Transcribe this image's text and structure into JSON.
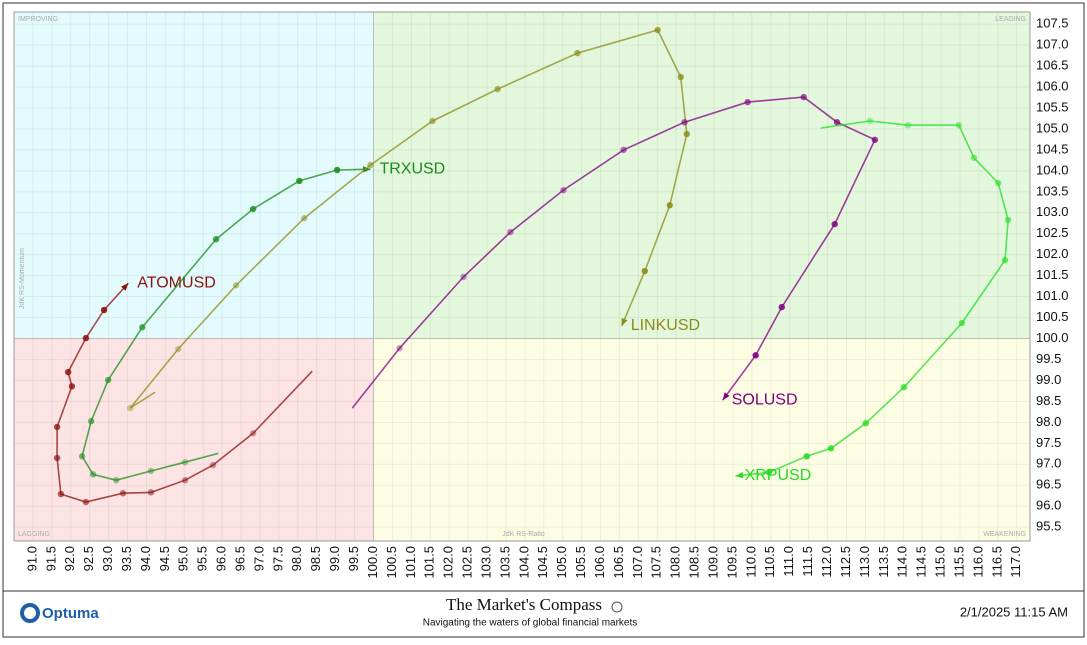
{
  "chart_data": {
    "type": "rrg",
    "xlabel": "JdK RS-Ratio",
    "ylabel": "JdK RS-Momentum",
    "quadrant_labels": {
      "improving": "IMPROVING",
      "leading": "LEADING",
      "lagging": "LAGGING",
      "weakening": "WEAKENING"
    },
    "center": [
      100,
      100
    ],
    "quadrant_colors": {
      "improving": "#e3fbfd",
      "leading": "#e3f7dd",
      "lagging": "#fde4e4",
      "weakening": "#fdfde4"
    },
    "grid": true,
    "xlim": [
      90.5,
      117.35
    ],
    "ylim": [
      95.17,
      107.79
    ],
    "xticks": [
      {
        "value": 91,
        "label": "91.0"
      },
      {
        "value": 91.5,
        "label": "91.5"
      },
      {
        "value": 92,
        "label": "92.0"
      },
      {
        "value": 92.5,
        "label": "92.5"
      },
      {
        "value": 93,
        "label": "93.0"
      },
      {
        "value": 93.5,
        "label": "93.5"
      },
      {
        "value": 94,
        "label": "94.0"
      },
      {
        "value": 94.5,
        "label": "94.5"
      },
      {
        "value": 95,
        "label": "95.0"
      },
      {
        "value": 95.5,
        "label": "95.5"
      },
      {
        "value": 96,
        "label": "96.0"
      },
      {
        "value": 96.5,
        "label": "96.5"
      },
      {
        "value": 97,
        "label": "97.0"
      },
      {
        "value": 97.5,
        "label": "97.5"
      },
      {
        "value": 98,
        "label": "98.0"
      },
      {
        "value": 98.5,
        "label": "98.5"
      },
      {
        "value": 99,
        "label": "99.0"
      },
      {
        "value": 99.5,
        "label": "99.5"
      },
      {
        "value": 100,
        "label": "100.0"
      },
      {
        "value": 100.5,
        "label": "100.5"
      },
      {
        "value": 101,
        "label": "101.0"
      },
      {
        "value": 101.5,
        "label": "101.5"
      },
      {
        "value": 102,
        "label": "102.0"
      },
      {
        "value": 102.5,
        "label": "102.5"
      },
      {
        "value": 103,
        "label": "103.0"
      },
      {
        "value": 103.5,
        "label": "103.5"
      },
      {
        "value": 104,
        "label": "104.0"
      },
      {
        "value": 104.5,
        "label": "104.5"
      },
      {
        "value": 105,
        "label": "105.0"
      },
      {
        "value": 105.5,
        "label": "105.5"
      },
      {
        "value": 106,
        "label": "106.0"
      },
      {
        "value": 106.5,
        "label": "106.5"
      },
      {
        "value": 107,
        "label": "107.0"
      },
      {
        "value": 107.5,
        "label": "107.5"
      },
      {
        "value": 108,
        "label": "108.0"
      },
      {
        "value": 108.5,
        "label": "108.5"
      },
      {
        "value": 109,
        "label": "109.0"
      },
      {
        "value": 109.5,
        "label": "109.5"
      },
      {
        "value": 110,
        "label": "110.0"
      },
      {
        "value": 110.5,
        "label": "110.5"
      },
      {
        "value": 111,
        "label": "111.0"
      },
      {
        "value": 111.5,
        "label": "111.5"
      },
      {
        "value": 112,
        "label": "112.0"
      },
      {
        "value": 112.5,
        "label": "112.5"
      },
      {
        "value": 113,
        "label": "113.0"
      },
      {
        "value": 113.5,
        "label": "113.5"
      },
      {
        "value": 114,
        "label": "114.0"
      },
      {
        "value": 114.5,
        "label": "114.5"
      },
      {
        "value": 115,
        "label": "115.0"
      },
      {
        "value": 115.5,
        "label": "115.5"
      },
      {
        "value": 116,
        "label": "116.0"
      },
      {
        "value": 116.5,
        "label": "116.5"
      },
      {
        "value": 117,
        "label": "117.0"
      }
    ],
    "yticks": [
      {
        "value": 95.5,
        "label": "95.5"
      },
      {
        "value": 96,
        "label": "96.0"
      },
      {
        "value": 96.5,
        "label": "96.5"
      },
      {
        "value": 97,
        "label": "97.0"
      },
      {
        "value": 97.5,
        "label": "97.5"
      },
      {
        "value": 98,
        "label": "98.0"
      },
      {
        "value": 98.5,
        "label": "98.5"
      },
      {
        "value": 99,
        "label": "99.0"
      },
      {
        "value": 99.5,
        "label": "99.5"
      },
      {
        "value": 100,
        "label": "100.0"
      },
      {
        "value": 100.5,
        "label": "100.5"
      },
      {
        "value": 101,
        "label": "101.0"
      },
      {
        "value": 101.5,
        "label": "101.5"
      },
      {
        "value": 102,
        "label": "102.0"
      },
      {
        "value": 102.5,
        "label": "102.5"
      },
      {
        "value": 103,
        "label": "103.0"
      },
      {
        "value": 103.5,
        "label": "103.5"
      },
      {
        "value": 104,
        "label": "104.0"
      },
      {
        "value": 104.5,
        "label": "104.5"
      },
      {
        "value": 105,
        "label": "105.0"
      },
      {
        "value": 105.5,
        "label": "105.5"
      },
      {
        "value": 106,
        "label": "106.0"
      },
      {
        "value": 106.5,
        "label": "106.5"
      },
      {
        "value": 107,
        "label": "107.0"
      },
      {
        "value": 107.5,
        "label": "107.5"
      }
    ],
    "series": [
      {
        "name": "ATOMUSD",
        "color": "#8b1010",
        "x": [
          98.38,
          96.82,
          95.76,
          95.02,
          94.12,
          93.38,
          92.4,
          91.74,
          91.64,
          91.64,
          92.03,
          91.93,
          92.4,
          92.88,
          93.52
        ],
        "values": [
          99.22,
          97.74,
          96.98,
          96.62,
          96.33,
          96.31,
          96.1,
          96.29,
          97.15,
          97.89,
          98.86,
          99.2,
          100.01,
          100.68,
          101.32
        ]
      },
      {
        "name": "TRXUSD",
        "color": "#1a8c1a",
        "x": [
          95.9,
          95.02,
          94.12,
          93.2,
          92.59,
          92.3,
          92.54,
          92.99,
          93.89,
          95.84,
          96.82,
          98.04,
          99.04,
          99.92
        ],
        "values": [
          97.26,
          97.05,
          96.84,
          96.62,
          96.76,
          97.19,
          98.03,
          99.01,
          100.27,
          102.37,
          103.09,
          103.76,
          104.02,
          104.04
        ]
      },
      {
        "name": "LINKUSD",
        "color": "#8c8c1a",
        "x": [
          94.23,
          93.57,
          94.84,
          96.37,
          98.17,
          99.92,
          101.56,
          103.28,
          105.39,
          107.51,
          108.12,
          108.28,
          107.83,
          107.17,
          106.56
        ],
        "values": [
          98.72,
          98.34,
          99.75,
          101.27,
          102.87,
          104.14,
          105.19,
          105.95,
          106.81,
          107.36,
          106.24,
          104.88,
          103.18,
          101.61,
          100.3
        ]
      },
      {
        "name": "SOLUSD",
        "color": "#800080",
        "x": [
          99.44,
          100.69,
          102.38,
          103.62,
          105.02,
          106.61,
          108.22,
          109.89,
          111.37,
          112.25,
          113.25,
          112.19,
          110.79,
          110.1,
          109.23
        ],
        "values": [
          98.34,
          99.77,
          101.47,
          102.54,
          103.54,
          104.5,
          105.16,
          105.64,
          105.76,
          105.16,
          104.74,
          102.73,
          100.75,
          99.6,
          98.53
        ]
      },
      {
        "name": "XRPUSD",
        "color": "#22dd22",
        "x": [
          111.82,
          113.12,
          114.12,
          115.47,
          115.87,
          116.51,
          116.77,
          116.69,
          115.55,
          114.02,
          113.01,
          112.09,
          111.45,
          110.45,
          109.57
        ],
        "values": [
          105.02,
          105.19,
          105.09,
          105.09,
          104.31,
          103.71,
          102.83,
          101.87,
          100.37,
          98.84,
          97.98,
          97.38,
          97.19,
          96.81,
          96.72
        ]
      }
    ]
  },
  "footer": {
    "brand": "Optuma",
    "title": "The Market's Compass",
    "subtitle": "Navigating the waters of global financial markets",
    "timestamp": "2/1/2025 11:15 AM"
  }
}
